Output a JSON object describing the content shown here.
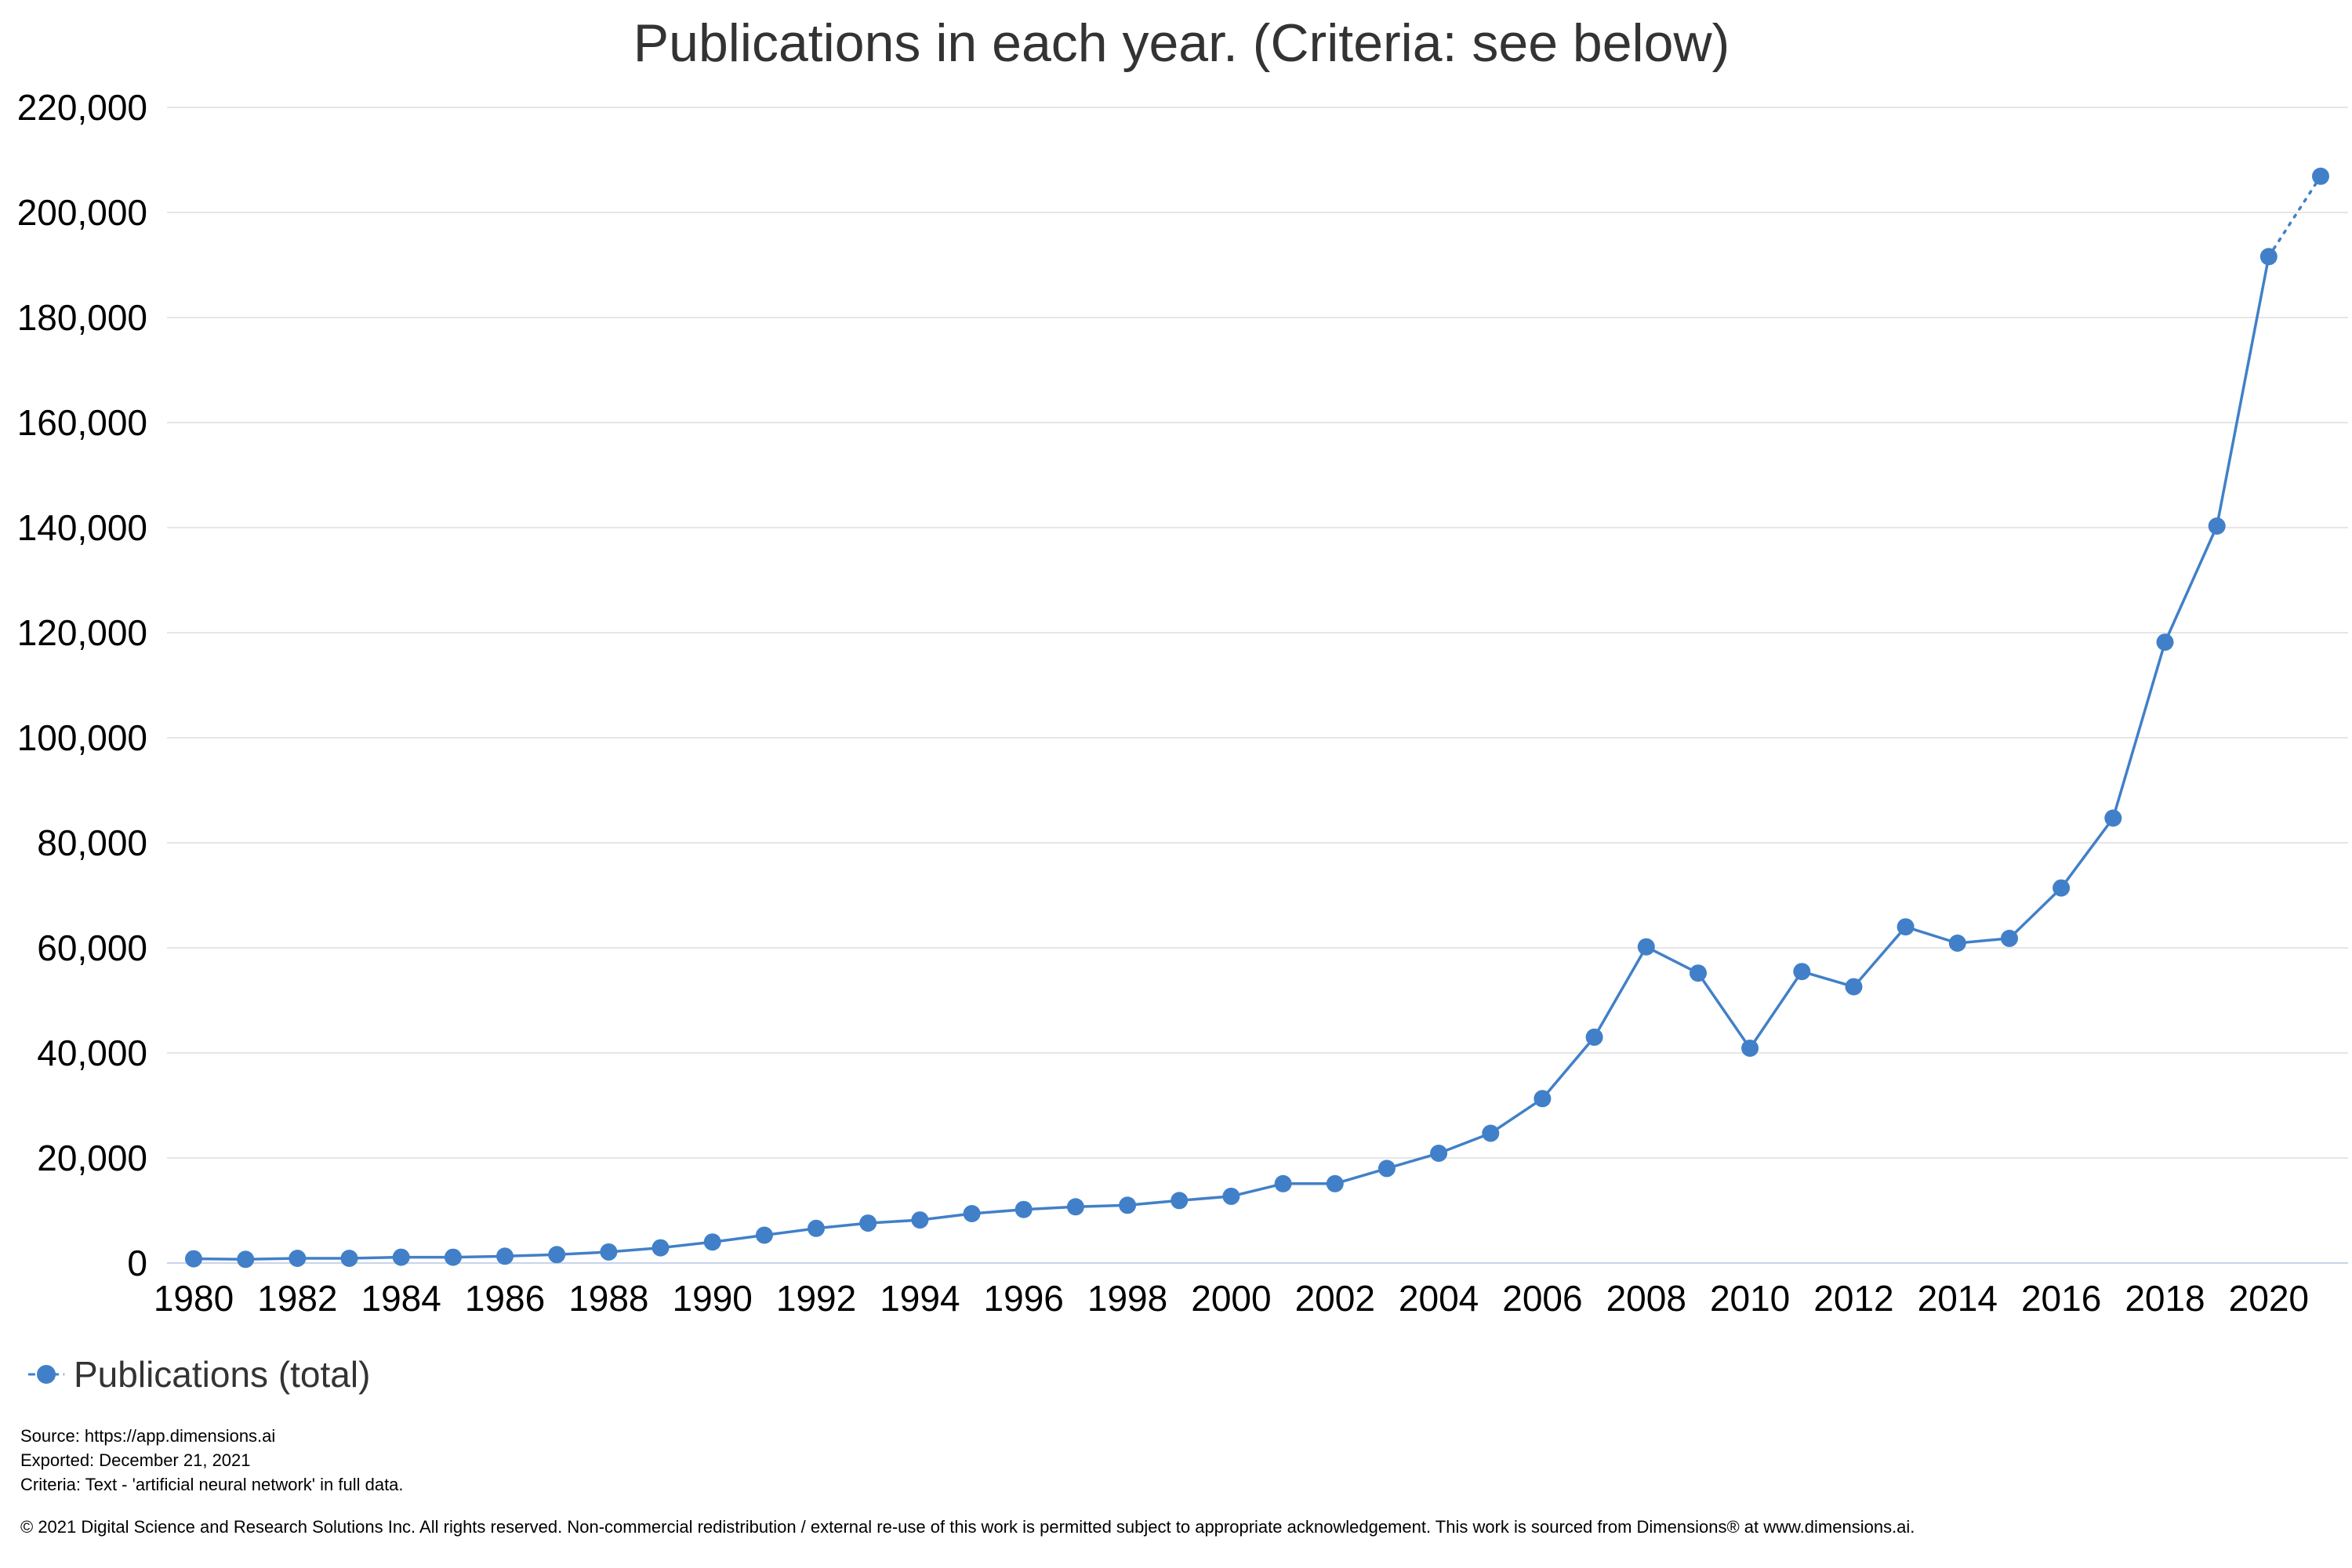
{
  "chart_data": {
    "type": "line",
    "title": "Publications in each year. (Criteria: see below)",
    "xlabel": "",
    "ylabel": "",
    "ylim": [
      0,
      220000
    ],
    "yticks": [
      0,
      20000,
      40000,
      60000,
      80000,
      100000,
      120000,
      140000,
      160000,
      180000,
      200000,
      220000
    ],
    "ytick_labels": [
      "0",
      "20,000",
      "40,000",
      "60,000",
      "80,000",
      "100,000",
      "120,000",
      "140,000",
      "160,000",
      "180,000",
      "200,000",
      "220,000"
    ],
    "xlim": [
      1980,
      2021
    ],
    "xticks": [
      1980,
      1982,
      1984,
      1986,
      1988,
      1990,
      1992,
      1994,
      1996,
      1998,
      2000,
      2002,
      2004,
      2006,
      2008,
      2010,
      2012,
      2014,
      2016,
      2018,
      2020
    ],
    "xtick_labels": [
      "1980",
      "1982",
      "1984",
      "1986",
      "1988",
      "1990",
      "1992",
      "1994",
      "1996",
      "1998",
      "2000",
      "2002",
      "2004",
      "2006",
      "2008",
      "2010",
      "2012",
      "2014",
      "2016",
      "2018",
      "2020"
    ],
    "grid": true,
    "legend_position": "bottom-left",
    "series": [
      {
        "name": "Publications (total)",
        "color": "#4180c8",
        "x": [
          1980,
          1981,
          1982,
          1983,
          1984,
          1985,
          1986,
          1987,
          1988,
          1989,
          1990,
          1991,
          1992,
          1993,
          1994,
          1995,
          1996,
          1997,
          1998,
          1999,
          2000,
          2001,
          2002,
          2003,
          2004,
          2005,
          2006,
          2007,
          2008,
          2009,
          2010,
          2011,
          2012,
          2013,
          2014,
          2015,
          2016,
          2017,
          2018,
          2019,
          2020,
          2021
        ],
        "values": [
          800,
          700,
          900,
          900,
          1100,
          1100,
          1300,
          1600,
          2100,
          2900,
          4000,
          5300,
          6600,
          7600,
          8200,
          9400,
          10200,
          10700,
          11000,
          11900,
          12700,
          15100,
          15100,
          18000,
          20900,
          24700,
          31300,
          43000,
          60200,
          55200,
          40900,
          55500,
          52600,
          64000,
          60900,
          61800,
          71400,
          84700,
          118200,
          140300,
          191600,
          206900
        ],
        "partial_from_index": 40
      }
    ]
  },
  "footer": {
    "source": "Source: https://app.dimensions.ai",
    "exported": "Exported: December 21, 2021",
    "criteria": "Criteria: Text - 'artificial neural network' in full data.",
    "copyright": "© 2021 Digital Science and Research Solutions Inc. All rights reserved. Non-commercial redistribution / external re-use of this work is permitted subject to appropriate acknowledgement. This work is sourced from Dimensions® at www.dimensions.ai."
  }
}
